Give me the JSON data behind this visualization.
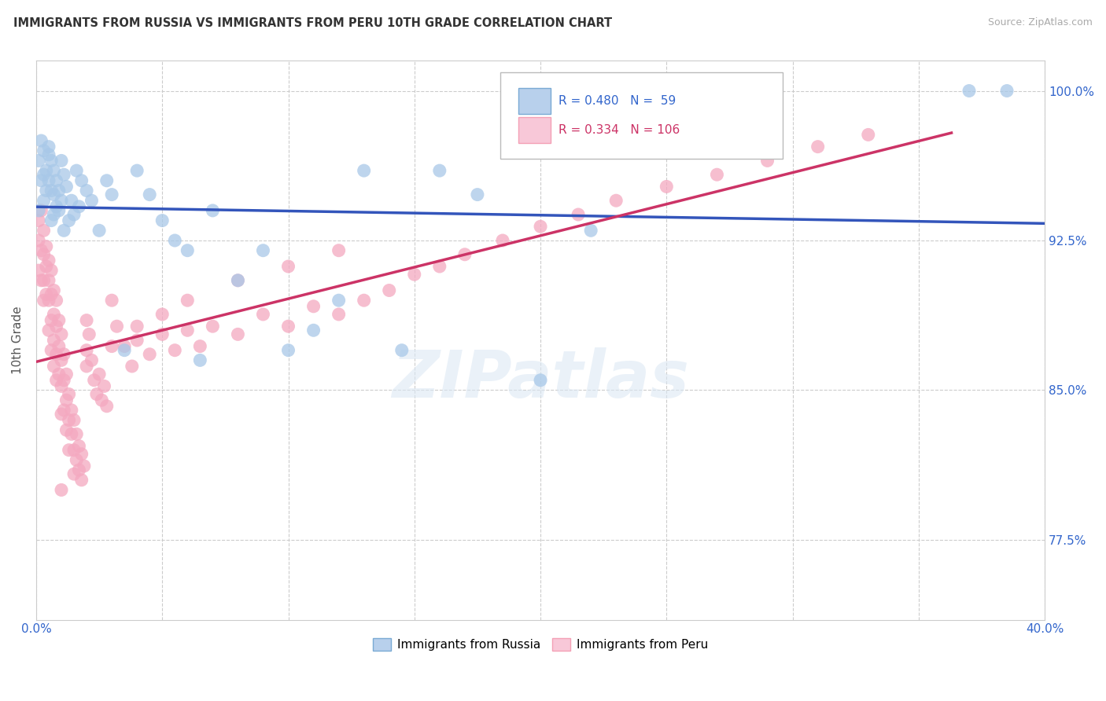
{
  "title": "IMMIGRANTS FROM RUSSIA VS IMMIGRANTS FROM PERU 10TH GRADE CORRELATION CHART",
  "source": "Source: ZipAtlas.com",
  "ylabel": "10th Grade",
  "xlim": [
    0.0,
    0.4
  ],
  "ylim": [
    0.735,
    1.015
  ],
  "xtick_vals": [
    0.0,
    0.05,
    0.1,
    0.15,
    0.2,
    0.25,
    0.3,
    0.35,
    0.4
  ],
  "xticklabels": [
    "0.0%",
    "",
    "",
    "",
    "",
    "",
    "",
    "",
    "40.0%"
  ],
  "ytick_vals": [
    0.775,
    0.85,
    0.925,
    1.0
  ],
  "yticklabels": [
    "77.5%",
    "85.0%",
    "92.5%",
    "100.0%"
  ],
  "russia_color": "#a8c8e8",
  "peru_color": "#f4a8c0",
  "russia_line_color": "#3355bb",
  "peru_line_color": "#cc3366",
  "R_russia": 0.48,
  "N_russia": 59,
  "R_peru": 0.334,
  "N_peru": 106,
  "russia_x": [
    0.001,
    0.001,
    0.002,
    0.002,
    0.003,
    0.003,
    0.003,
    0.004,
    0.004,
    0.005,
    0.005,
    0.005,
    0.006,
    0.006,
    0.006,
    0.007,
    0.007,
    0.007,
    0.008,
    0.008,
    0.009,
    0.009,
    0.01,
    0.01,
    0.011,
    0.011,
    0.012,
    0.013,
    0.014,
    0.015,
    0.016,
    0.017,
    0.018,
    0.02,
    0.022,
    0.025,
    0.028,
    0.03,
    0.035,
    0.04,
    0.045,
    0.05,
    0.055,
    0.06,
    0.065,
    0.07,
    0.08,
    0.09,
    0.1,
    0.11,
    0.12,
    0.13,
    0.145,
    0.16,
    0.175,
    0.2,
    0.22,
    0.37,
    0.385
  ],
  "russia_y": [
    0.965,
    0.94,
    0.975,
    0.955,
    0.97,
    0.958,
    0.945,
    0.96,
    0.95,
    0.968,
    0.972,
    0.955,
    0.965,
    0.95,
    0.935,
    0.96,
    0.948,
    0.938,
    0.955,
    0.942,
    0.95,
    0.94,
    0.965,
    0.945,
    0.958,
    0.93,
    0.952,
    0.935,
    0.945,
    0.938,
    0.96,
    0.942,
    0.955,
    0.95,
    0.945,
    0.93,
    0.955,
    0.948,
    0.87,
    0.96,
    0.948,
    0.935,
    0.925,
    0.92,
    0.865,
    0.94,
    0.905,
    0.92,
    0.87,
    0.88,
    0.895,
    0.96,
    0.87,
    0.96,
    0.948,
    0.855,
    0.93,
    1.0,
    1.0
  ],
  "peru_x": [
    0.001,
    0.001,
    0.001,
    0.002,
    0.002,
    0.002,
    0.003,
    0.003,
    0.003,
    0.003,
    0.004,
    0.004,
    0.004,
    0.005,
    0.005,
    0.005,
    0.005,
    0.006,
    0.006,
    0.006,
    0.006,
    0.007,
    0.007,
    0.007,
    0.007,
    0.008,
    0.008,
    0.008,
    0.008,
    0.009,
    0.009,
    0.009,
    0.01,
    0.01,
    0.01,
    0.01,
    0.011,
    0.011,
    0.011,
    0.012,
    0.012,
    0.012,
    0.013,
    0.013,
    0.013,
    0.014,
    0.014,
    0.015,
    0.015,
    0.015,
    0.016,
    0.016,
    0.017,
    0.017,
    0.018,
    0.018,
    0.019,
    0.02,
    0.02,
    0.021,
    0.022,
    0.023,
    0.024,
    0.025,
    0.026,
    0.027,
    0.028,
    0.03,
    0.032,
    0.035,
    0.038,
    0.04,
    0.045,
    0.05,
    0.055,
    0.06,
    0.065,
    0.07,
    0.08,
    0.09,
    0.1,
    0.11,
    0.12,
    0.13,
    0.14,
    0.15,
    0.16,
    0.17,
    0.185,
    0.2,
    0.215,
    0.23,
    0.25,
    0.27,
    0.29,
    0.31,
    0.33,
    0.01,
    0.02,
    0.03,
    0.04,
    0.05,
    0.06,
    0.08,
    0.1,
    0.12
  ],
  "peru_y": [
    0.935,
    0.925,
    0.91,
    0.94,
    0.92,
    0.905,
    0.93,
    0.918,
    0.905,
    0.895,
    0.922,
    0.912,
    0.898,
    0.915,
    0.905,
    0.895,
    0.88,
    0.91,
    0.898,
    0.885,
    0.87,
    0.9,
    0.888,
    0.875,
    0.862,
    0.895,
    0.882,
    0.868,
    0.855,
    0.885,
    0.872,
    0.858,
    0.878,
    0.865,
    0.852,
    0.838,
    0.868,
    0.855,
    0.84,
    0.858,
    0.845,
    0.83,
    0.848,
    0.835,
    0.82,
    0.84,
    0.828,
    0.835,
    0.82,
    0.808,
    0.828,
    0.815,
    0.822,
    0.81,
    0.818,
    0.805,
    0.812,
    0.885,
    0.87,
    0.878,
    0.865,
    0.855,
    0.848,
    0.858,
    0.845,
    0.852,
    0.842,
    0.895,
    0.882,
    0.872,
    0.862,
    0.875,
    0.868,
    0.878,
    0.87,
    0.88,
    0.872,
    0.882,
    0.878,
    0.888,
    0.882,
    0.892,
    0.888,
    0.895,
    0.9,
    0.908,
    0.912,
    0.918,
    0.925,
    0.932,
    0.938,
    0.945,
    0.952,
    0.958,
    0.965,
    0.972,
    0.978,
    0.8,
    0.862,
    0.872,
    0.882,
    0.888,
    0.895,
    0.905,
    0.912,
    0.92
  ]
}
